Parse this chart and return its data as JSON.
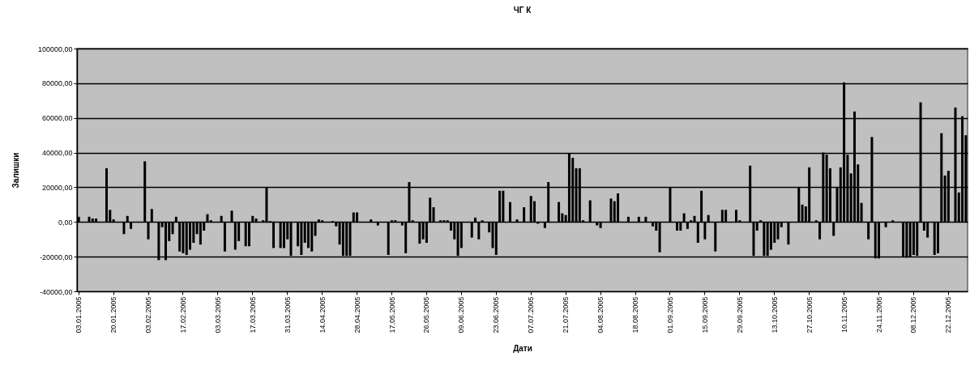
{
  "chart_data": {
    "type": "bar",
    "title": "ЧГ К",
    "xlabel": "Дати",
    "ylabel": "Залишки",
    "color": "#000000",
    "grid": "y",
    "categories": [
      "03.01.2005",
      null,
      null,
      null,
      null,
      null,
      null,
      null,
      null,
      null,
      "20.01.2005",
      null,
      null,
      null,
      null,
      null,
      null,
      null,
      null,
      null,
      "03.02.2005",
      null,
      null,
      null,
      null,
      null,
      null,
      null,
      null,
      null,
      "17.02.2005",
      null,
      null,
      null,
      null,
      null,
      null,
      null,
      null,
      null,
      "03.03.2005",
      null,
      null,
      null,
      null,
      null,
      null,
      null,
      null,
      null,
      "17.03.2005",
      null,
      null,
      null,
      null,
      null,
      null,
      null,
      null,
      null,
      "31.03.2005",
      null,
      null,
      null,
      null,
      null,
      null,
      null,
      null,
      null,
      "14.04.2005",
      null,
      null,
      null,
      null,
      null,
      null,
      null,
      null,
      null,
      "28.04.2005",
      null,
      null,
      null,
      null,
      null,
      null,
      null,
      null,
      null,
      "17.05.2005",
      null,
      null,
      null,
      null,
      null,
      null,
      null,
      null,
      null,
      "26.05.2005",
      null,
      null,
      null,
      null,
      null,
      null,
      null,
      null,
      null,
      "09.06.2005",
      null,
      null,
      null,
      null,
      null,
      null,
      null,
      null,
      null,
      "23.06.2005",
      null,
      null,
      null,
      null,
      null,
      null,
      null,
      null,
      null,
      "07.07.2005",
      null,
      null,
      null,
      null,
      null,
      null,
      null,
      null,
      null,
      "21.07.2005",
      null,
      null,
      null,
      null,
      null,
      null,
      null,
      null,
      null,
      "04.08.2005",
      null,
      null,
      null,
      null,
      null,
      null,
      null,
      null,
      null,
      "18.08.2005",
      null,
      null,
      null,
      null,
      null,
      null,
      null,
      null,
      null,
      "01.09.2005",
      null,
      null,
      null,
      null,
      null,
      null,
      null,
      null,
      null,
      "15.09.2005",
      null,
      null,
      null,
      null,
      null,
      null,
      null,
      null,
      null,
      "29.09.2005",
      null,
      null,
      null,
      null,
      null,
      null,
      null,
      null,
      null,
      "13.10.2005",
      null,
      null,
      null,
      null,
      null,
      null,
      null,
      null,
      null,
      "27.10.2005",
      null,
      null,
      null,
      null,
      null,
      null,
      null,
      null,
      null,
      "10.11.2005",
      null,
      null,
      null,
      null,
      null,
      null,
      null,
      null,
      null,
      "24.11.2005",
      null,
      null,
      null,
      null,
      null,
      null,
      null,
      null,
      null,
      "08.12.2005",
      null,
      null,
      null,
      null,
      null,
      null,
      null,
      null,
      null,
      "22.12.2005",
      null,
      null,
      null,
      null,
      null
    ],
    "values": [
      3000,
      null,
      null,
      3000,
      2000,
      2000,
      null,
      null,
      31000,
      7000,
      1500,
      null,
      null,
      -7000,
      3500,
      -4000,
      null,
      null,
      null,
      35000,
      -10000,
      7500,
      null,
      -22000,
      -3000,
      -22000,
      -11000,
      -7000,
      3000,
      -17000,
      -18000,
      -19000,
      -16000,
      -12000,
      -7000,
      -13000,
      -5000,
      4500,
      1000,
      null,
      null,
      3500,
      -17000,
      null,
      6500,
      -16000,
      -11000,
      null,
      -14000,
      -14000,
      3500,
      2000,
      null,
      1000,
      20000,
      500,
      -15000,
      null,
      -15000,
      -15000,
      -10000,
      -19500,
      null,
      -14000,
      -19000,
      -12000,
      -15000,
      -17000,
      -8000,
      1500,
      1000,
      null,
      null,
      500,
      -2500,
      -13000,
      -19500,
      -19500,
      -19500,
      5500,
      5500,
      null,
      null,
      null,
      1500,
      null,
      -2000,
      null,
      null,
      -19000,
      1000,
      1000,
      null,
      -2000,
      -18000,
      23000,
      1000,
      null,
      -12500,
      -10000,
      -12000,
      14000,
      8500,
      null,
      1000,
      1000,
      1000,
      -5000,
      -10000,
      -19500,
      -15000,
      null,
      null,
      -9000,
      2500,
      -10000,
      1000,
      null,
      -6000,
      -15000,
      -19000,
      18000,
      18000,
      null,
      11500,
      null,
      1500,
      null,
      8500,
      null,
      15000,
      12000,
      -1000,
      null,
      -3500,
      23000,
      null,
      null,
      11500,
      5000,
      4000,
      39500,
      37000,
      31000,
      31000,
      1000,
      null,
      12500,
      null,
      -2000,
      -3500,
      null,
      null,
      13500,
      12000,
      16500,
      null,
      null,
      3000,
      null,
      null,
      3000,
      null,
      3000,
      null,
      -2500,
      -5000,
      -17500,
      null,
      null,
      20000,
      null,
      -5000,
      -5000,
      5000,
      -4000,
      1000,
      3500,
      -12000,
      18000,
      -10000,
      4000,
      null,
      -17000,
      null,
      7000,
      7000,
      null,
      null,
      7000,
      1000,
      null,
      null,
      32500,
      -19500,
      -5000,
      1000,
      -19500,
      -19500,
      -16000,
      -12000,
      -10000,
      -3000,
      null,
      -13000,
      null,
      null,
      20000,
      10000,
      9000,
      31500,
      null,
      1000,
      -10000,
      40000,
      38800,
      31000,
      -8000,
      20000,
      31500,
      80500,
      38800,
      28000,
      63700,
      33200,
      11000,
      null,
      -10000,
      49000,
      -21000,
      -21000,
      null,
      -3000,
      null,
      1000,
      null,
      null,
      -20000,
      -20500,
      -20000,
      -19000,
      -19500,
      69000,
      -5000,
      -9000,
      null,
      -19000,
      -18000,
      51200,
      26800,
      29500,
      null,
      66000,
      17000,
      61000,
      50000
    ],
    "ylim": [
      -40000,
      100000
    ],
    "yticks": [
      {
        "value": -40000,
        "label": "-40000,00"
      },
      {
        "value": -20000,
        "label": "-20000,00"
      },
      {
        "value": 0,
        "label": "0,00"
      },
      {
        "value": 20000,
        "label": "20000,00"
      },
      {
        "value": 40000,
        "label": "40000,00"
      },
      {
        "value": 60000,
        "label": "60000,00"
      },
      {
        "value": 80000,
        "label": "80000,00"
      },
      {
        "value": 100000,
        "label": "100000,00"
      }
    ]
  }
}
